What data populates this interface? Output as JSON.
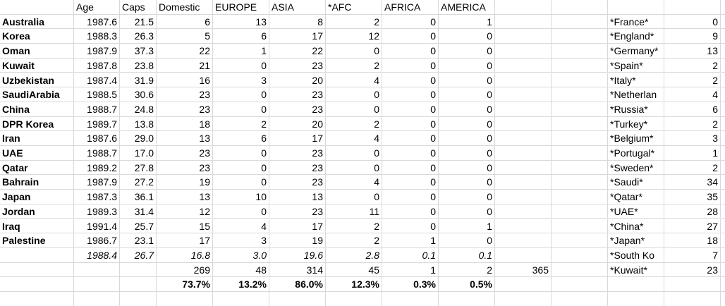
{
  "table": {
    "header": [
      "Age",
      "Caps",
      "Domestic",
      "EUROPE",
      "ASIA",
      "*AFC",
      "AFRICA",
      "AMERICA"
    ],
    "rows": [
      [
        "Australia",
        "1987.6",
        "21.5",
        "6",
        "13",
        "8",
        "2",
        "0",
        "1"
      ],
      [
        "Korea",
        "1988.3",
        "26.3",
        "5",
        "6",
        "17",
        "12",
        "0",
        "0"
      ],
      [
        "Oman",
        "1987.9",
        "37.3",
        "22",
        "1",
        "22",
        "0",
        "0",
        "0"
      ],
      [
        "Kuwait",
        "1987.8",
        "23.8",
        "21",
        "0",
        "23",
        "2",
        "0",
        "0"
      ],
      [
        "Uzbekistan",
        "1987.4",
        "31.9",
        "16",
        "3",
        "20",
        "4",
        "0",
        "0"
      ],
      [
        "SaudiArabia",
        "1988.5",
        "30.6",
        "23",
        "0",
        "23",
        "0",
        "0",
        "0"
      ],
      [
        "China",
        "1988.7",
        "24.8",
        "23",
        "0",
        "23",
        "0",
        "0",
        "0"
      ],
      [
        "DPR Korea",
        "1989.7",
        "13.8",
        "18",
        "2",
        "20",
        "2",
        "0",
        "0"
      ],
      [
        "Iran",
        "1987.6",
        "29.0",
        "13",
        "6",
        "17",
        "4",
        "0",
        "0"
      ],
      [
        "UAE",
        "1988.7",
        "17.0",
        "23",
        "0",
        "23",
        "0",
        "0",
        "0"
      ],
      [
        "Qatar",
        "1989.2",
        "27.8",
        "23",
        "0",
        "23",
        "0",
        "0",
        "0"
      ],
      [
        "Bahrain",
        "1987.9",
        "27.2",
        "19",
        "0",
        "23",
        "4",
        "0",
        "0"
      ],
      [
        "Japan",
        "1987.3",
        "36.1",
        "13",
        "10",
        "13",
        "0",
        "0",
        "0"
      ],
      [
        "Jordan",
        "1989.3",
        "31.4",
        "12",
        "0",
        "23",
        "11",
        "0",
        "0"
      ],
      [
        "Iraq",
        "1991.4",
        "25.7",
        "15",
        "4",
        "17",
        "2",
        "0",
        "1"
      ],
      [
        "Palestine",
        "1986.7",
        "23.1",
        "17",
        "3",
        "19",
        "2",
        "1",
        "0"
      ]
    ],
    "averages": [
      "1988.4",
      "26.7",
      "16.8",
      "3.0",
      "19.6",
      "2.8",
      "0.1",
      "0.1"
    ],
    "totals": [
      "269",
      "48",
      "314",
      "45",
      "1",
      "2",
      "365"
    ],
    "percents": [
      "73.7%",
      "13.2%",
      "86.0%",
      "12.3%",
      "0.3%",
      "0.5%"
    ],
    "side": [
      [
        "*France*",
        "0"
      ],
      [
        "*England*",
        "9"
      ],
      [
        "*Germany*",
        "13"
      ],
      [
        "*Spain*",
        "2"
      ],
      [
        "*Italy*",
        "2"
      ],
      [
        "*Netherlan",
        "4"
      ],
      [
        "*Russia*",
        "6"
      ],
      [
        "*Turkey*",
        "2"
      ],
      [
        "*Belgium*",
        "3"
      ],
      [
        "*Portugal*",
        "1"
      ],
      [
        "*Sweden*",
        "2"
      ],
      [
        "*Saudi*",
        "34"
      ],
      [
        "*Qatar*",
        "35"
      ],
      [
        "*UAE*",
        "28"
      ],
      [
        "*China*",
        "27"
      ],
      [
        "*Japan*",
        "18"
      ],
      [
        "*South Ko",
        "7"
      ],
      [
        "*Kuwait*",
        "23"
      ]
    ]
  }
}
